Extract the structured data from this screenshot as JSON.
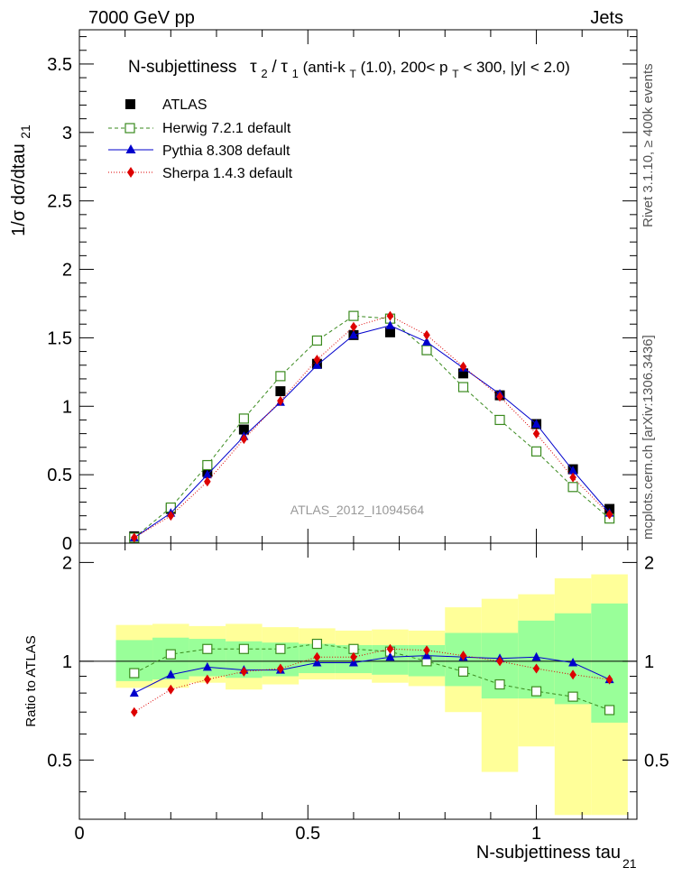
{
  "header": {
    "energy_label": "7000 GeV pp",
    "category_label": "Jets",
    "side_label_rivet": "Rivet 3.1.10, ≥ 400k events",
    "side_label_source": "mcplots.cern.ch [arXiv:1306.3436]",
    "watermark": "ATLAS_2012_I1094564"
  },
  "chart_data": [
    {
      "type": "scatter",
      "panel": "main",
      "title": "N-subjettiness τ2/τ1 (anti-kT(1.0), 200< pT < 300, |y| < 2.0)",
      "title_parts": {
        "prefix": "N-subjettiness",
        "tau2": "τ",
        "sub2": "2",
        "slash": "/",
        "tau1": "τ",
        "sub1": "1",
        "cut_a": " (anti-k",
        "sub_T1": "T",
        "cut_b": "(1.0), 200< p",
        "sub_T2": "T",
        "cut_c": " < 300, |y| < 2.0)"
      },
      "ylabel": "1/σ dσ/dtau",
      "ylabel_sub": "21",
      "xlim": [
        0,
        1.22
      ],
      "ylim": [
        0,
        3.75
      ],
      "y_ticks": [
        0,
        0.5,
        1,
        1.5,
        2,
        2.5,
        3,
        3.5
      ],
      "y_tick_labels": [
        "0",
        "0.5",
        "1",
        "1.5",
        "2",
        "2.5",
        "3",
        "3.5"
      ],
      "x": [
        0.12,
        0.2,
        0.28,
        0.36,
        0.44,
        0.52,
        0.6,
        0.68,
        0.76,
        0.84,
        0.92,
        1.0,
        1.08,
        1.16
      ],
      "series": [
        {
          "name": "ATLAS",
          "color": "#000000",
          "marker": "square-filled",
          "values": [
            0.05,
            0.25,
            0.52,
            0.83,
            1.11,
            1.31,
            1.52,
            1.54,
            1.41,
            1.24,
            1.08,
            0.87,
            0.54,
            0.25
          ]
        },
        {
          "name": "Herwig 7.2.1 default",
          "color": "#3a8a1e",
          "marker": "square-open",
          "line": "dashed",
          "values": [
            0.04,
            0.26,
            0.57,
            0.91,
            1.22,
            1.48,
            1.66,
            1.64,
            1.41,
            1.14,
            0.9,
            0.67,
            0.41,
            0.18
          ]
        },
        {
          "name": "Pythia 8.308 default",
          "color": "#0000cc",
          "marker": "triangle",
          "line": "solid",
          "values": [
            0.04,
            0.22,
            0.5,
            0.78,
            1.03,
            1.3,
            1.52,
            1.59,
            1.47,
            1.28,
            1.09,
            0.87,
            0.53,
            0.22
          ]
        },
        {
          "name": "Sherpa 1.4.3 default",
          "color": "#dd0000",
          "marker": "diamond",
          "line": "dotted",
          "values": [
            0.04,
            0.2,
            0.45,
            0.76,
            1.04,
            1.34,
            1.58,
            1.66,
            1.52,
            1.29,
            1.07,
            0.8,
            0.48,
            0.21
          ]
        }
      ]
    },
    {
      "type": "scatter",
      "panel": "ratio",
      "ylabel": "Ratio to ATLAS",
      "xlabel": "N-subjettiness tau",
      "xlabel_sub": "21",
      "xlim": [
        0,
        1.22
      ],
      "ylim": [
        0.33,
        2.29
      ],
      "x_ticks": [
        0,
        0.5,
        1
      ],
      "x_tick_labels": [
        "0",
        "0.5",
        "1"
      ],
      "y_ticks": [
        0.5,
        1,
        2
      ],
      "y_tick_labels": [
        "0.5",
        "1",
        "2"
      ],
      "x": [
        0.12,
        0.2,
        0.28,
        0.36,
        0.44,
        0.52,
        0.6,
        0.68,
        0.76,
        0.84,
        0.92,
        1.0,
        1.08,
        1.16
      ],
      "bands": {
        "bin_edges": [
          0.08,
          0.16,
          0.24,
          0.32,
          0.4,
          0.48,
          0.56,
          0.64,
          0.72,
          0.8,
          0.88,
          0.96,
          1.04,
          1.12,
          1.2
        ],
        "yellow_low": [
          0.83,
          0.83,
          0.86,
          0.82,
          0.85,
          0.88,
          0.88,
          0.86,
          0.84,
          0.7,
          0.46,
          0.55,
          0.34,
          0.34
        ],
        "yellow_high": [
          1.29,
          1.3,
          1.28,
          1.3,
          1.27,
          1.26,
          1.24,
          1.25,
          1.24,
          1.46,
          1.55,
          1.6,
          1.79,
          1.84
        ],
        "green_low": [
          0.87,
          0.88,
          0.9,
          0.89,
          0.9,
          0.92,
          0.92,
          0.91,
          0.9,
          0.84,
          0.77,
          0.77,
          0.74,
          0.65
        ],
        "green_high": [
          1.16,
          1.18,
          1.17,
          1.15,
          1.14,
          1.13,
          1.12,
          1.12,
          1.12,
          1.22,
          1.22,
          1.33,
          1.4,
          1.5
        ]
      },
      "series": [
        {
          "name": "Herwig 7.2.1 default",
          "color": "#3a8a1e",
          "marker": "square-open",
          "line": "dashed",
          "values": [
            0.92,
            1.05,
            1.09,
            1.09,
            1.09,
            1.13,
            1.09,
            1.07,
            1.0,
            0.93,
            0.85,
            0.81,
            0.78,
            0.71
          ]
        },
        {
          "name": "Pythia 8.308 default",
          "color": "#0000cc",
          "marker": "triangle",
          "line": "solid",
          "values": [
            0.8,
            0.91,
            0.96,
            0.94,
            0.94,
            0.99,
            0.99,
            1.03,
            1.04,
            1.03,
            1.02,
            1.03,
            0.99,
            0.88
          ]
        },
        {
          "name": "Sherpa 1.4.3 default",
          "color": "#dd0000",
          "marker": "diamond",
          "line": "dotted",
          "values": [
            0.7,
            0.82,
            0.88,
            0.93,
            0.95,
            1.03,
            1.03,
            1.09,
            1.08,
            1.04,
            1.0,
            0.95,
            0.91,
            0.88
          ]
        }
      ]
    }
  ]
}
